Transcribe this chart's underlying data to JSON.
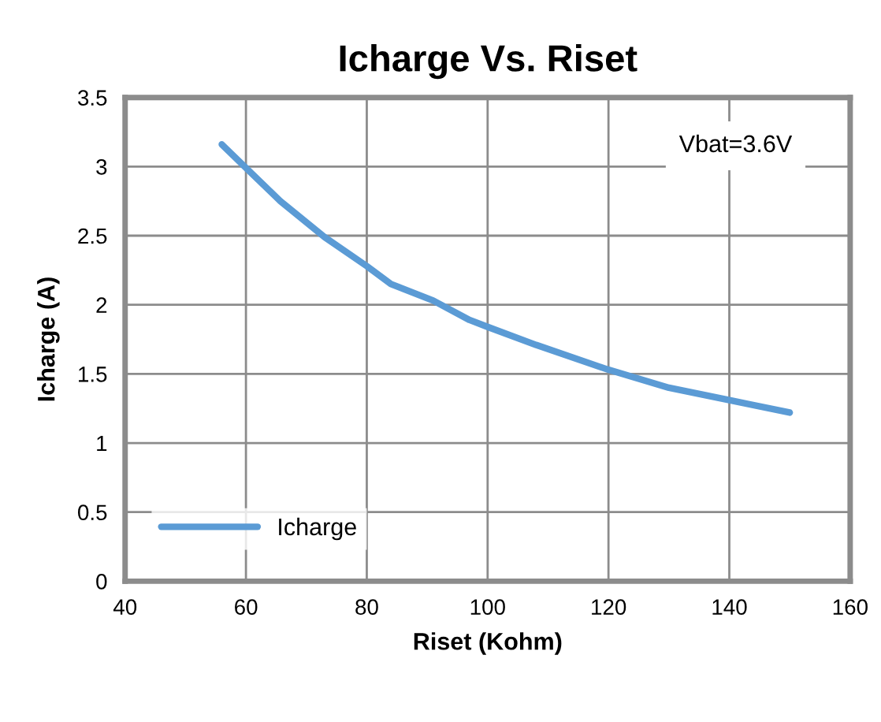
{
  "chart_data": {
    "type": "line",
    "title": "Icharge Vs. Riset",
    "xlabel": "Riset (Kohm)",
    "ylabel": "Icharge (A)",
    "annotations": [
      "Vbat=3.6V"
    ],
    "series": [
      {
        "name": "Icharge",
        "color": "#5b9bd5",
        "x": [
          56,
          60,
          65.7,
          73,
          80,
          84,
          91,
          97,
          100,
          108,
          120,
          130,
          140,
          150
        ],
        "values": [
          3.16,
          2.99,
          2.75,
          2.49,
          2.28,
          2.15,
          2.03,
          1.89,
          1.84,
          1.71,
          1.53,
          1.4,
          1.31,
          1.22
        ]
      }
    ],
    "xlim": [
      40,
      160
    ],
    "xticks": [
      40,
      60,
      80,
      100,
      120,
      140,
      160
    ],
    "ylim": [
      0,
      3.5
    ],
    "yticks": [
      0,
      0.5,
      1,
      1.5,
      2,
      2.5,
      3,
      3.5
    ],
    "grid": true,
    "legend": "bottom left",
    "marker": "none",
    "line_style": "solid"
  }
}
